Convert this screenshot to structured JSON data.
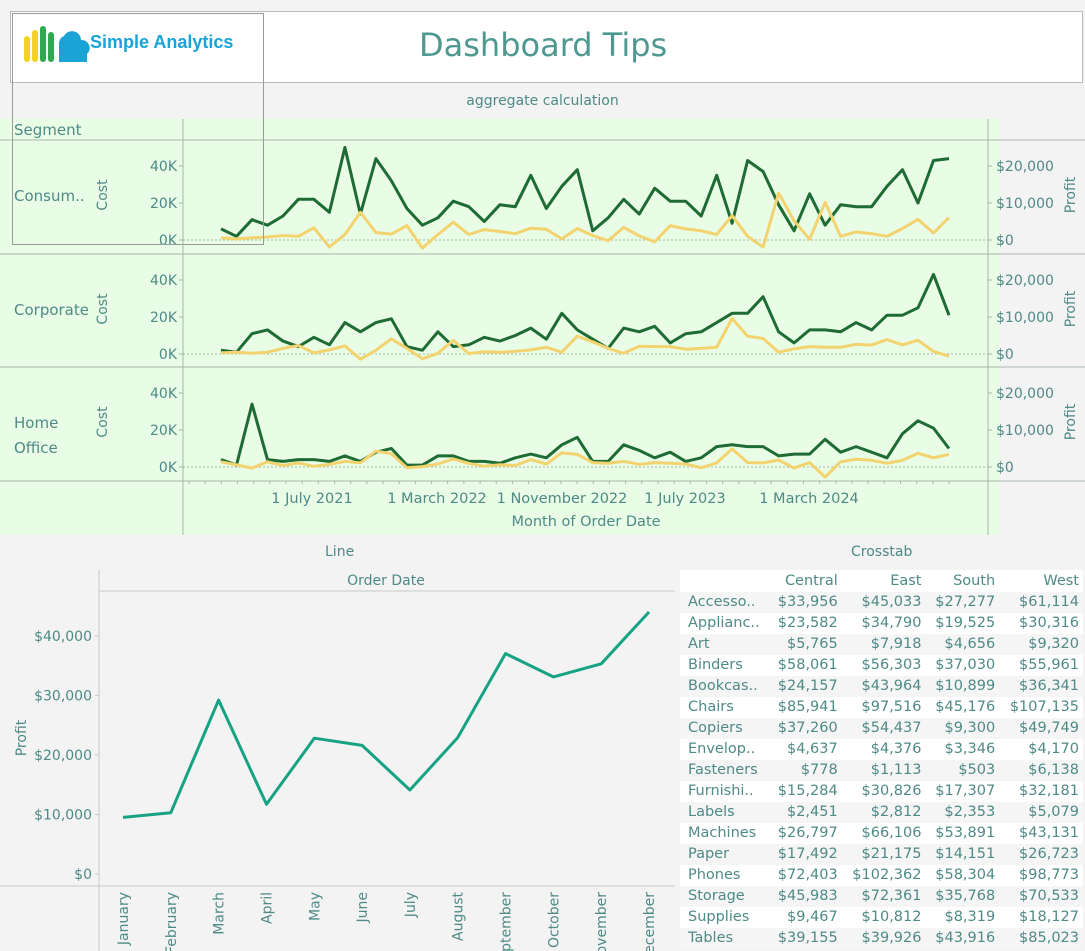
{
  "header": {
    "logo_text": "Simple Analytics",
    "title": "Dashboard Tips"
  },
  "top_chart": {
    "section_label": "aggregate calculation",
    "segment_header": "Segment",
    "rows": [
      {
        "segment": "Consum..",
        "cost_label": "Cost",
        "profit_label": "Profit"
      },
      {
        "segment": "Corporate",
        "cost_label": "Cost",
        "profit_label": "Profit"
      },
      {
        "segment_line1": "Home",
        "segment_line2": "Office",
        "cost_label": "Cost",
        "profit_label": "Profit"
      }
    ],
    "x_axis_title": "Month of Order Date"
  },
  "line_section": {
    "label": "Line",
    "column_header": "Order Date"
  },
  "crosstab": {
    "label": "Crosstab",
    "columns": [
      "Central",
      "East",
      "South",
      "West"
    ],
    "rows": [
      {
        "category": "Accesso..",
        "values": [
          "$33,956",
          "$45,033",
          "$27,277",
          "$61,114"
        ]
      },
      {
        "category": "Applianc..",
        "values": [
          "$23,582",
          "$34,790",
          "$19,525",
          "$30,316"
        ]
      },
      {
        "category": "Art",
        "values": [
          "$5,765",
          "$7,918",
          "$4,656",
          "$9,320"
        ]
      },
      {
        "category": "Binders",
        "values": [
          "$58,061",
          "$56,303",
          "$37,030",
          "$55,961"
        ]
      },
      {
        "category": "Bookcas..",
        "values": [
          "$24,157",
          "$43,964",
          "$10,899",
          "$36,341"
        ]
      },
      {
        "category": "Chairs",
        "values": [
          "$85,941",
          "$97,516",
          "$45,176",
          "$107,135"
        ]
      },
      {
        "category": "Copiers",
        "values": [
          "$37,260",
          "$54,437",
          "$9,300",
          "$49,749"
        ]
      },
      {
        "category": "Envelop..",
        "values": [
          "$4,637",
          "$4,376",
          "$3,346",
          "$4,170"
        ]
      },
      {
        "category": "Fasteners",
        "values": [
          "$778",
          "$1,113",
          "$503",
          "$6,138"
        ]
      },
      {
        "category": "Furnishi..",
        "values": [
          "$15,284",
          "$30,826",
          "$17,307",
          "$32,181"
        ]
      },
      {
        "category": "Labels",
        "values": [
          "$2,451",
          "$2,812",
          "$2,353",
          "$5,079"
        ]
      },
      {
        "category": "Machines",
        "values": [
          "$26,797",
          "$66,106",
          "$53,891",
          "$43,131"
        ]
      },
      {
        "category": "Paper",
        "values": [
          "$17,492",
          "$21,175",
          "$14,151",
          "$26,723"
        ]
      },
      {
        "category": "Phones",
        "values": [
          "$72,403",
          "$102,362",
          "$58,304",
          "$98,773"
        ]
      },
      {
        "category": "Storage",
        "values": [
          "$45,983",
          "$72,361",
          "$35,768",
          "$70,533"
        ]
      },
      {
        "category": "Supplies",
        "values": [
          "$9,467",
          "$10,812",
          "$8,319",
          "$18,127"
        ]
      },
      {
        "category": "Tables",
        "values": [
          "$39,155",
          "$39,926",
          "$43,916",
          "$85,023"
        ]
      }
    ]
  },
  "colors": {
    "cost_line": "#1e6b34",
    "profit_line": "#f3d36f",
    "profit_month_line": "#17a383",
    "panel_bg": "#e9fde6",
    "text": "#4e8a86"
  },
  "chart_data": [
    {
      "type": "line",
      "title": "aggregate calculation",
      "xlabel": "Month of Order Date",
      "x_tick_labels": [
        "1 July 2021",
        "1 March 2022",
        "1 November 2022",
        "1 July 2023",
        "1 March 2024"
      ],
      "left_axis": {
        "label": "Cost",
        "ticks": [
          "0K",
          "20K",
          "40K"
        ],
        "range": [
          0,
          50000
        ]
      },
      "right_axis": {
        "label": "Profit",
        "ticks": [
          "$0",
          "$10,000",
          "$20,000"
        ],
        "range": [
          0,
          25000
        ]
      },
      "panels": [
        {
          "segment": "Consumer",
          "series": [
            {
              "name": "Cost",
              "axis": "left",
              "values": [
                6000,
                2000,
                11000,
                8000,
                13000,
                22000,
                22000,
                15000,
                50000,
                14000,
                44000,
                32000,
                17000,
                8000,
                12000,
                21000,
                18000,
                10000,
                19000,
                18000,
                35000,
                17000,
                29000,
                38000,
                5000,
                12000,
                22000,
                14000,
                28000,
                21000,
                21000,
                13000,
                35000,
                9000,
                43000,
                37000,
                19000,
                5000,
                25000,
                8000,
                19000,
                18000,
                18000,
                29000,
                38000,
                20000,
                43000,
                44000
              ]
            },
            {
              "name": "Profit",
              "axis": "right",
              "values": [
                600,
                300,
                600,
                800,
                1200,
                1000,
                3300,
                -1900,
                1500,
                7500,
                2000,
                1600,
                3900,
                -2200,
                1500,
                4800,
                1500,
                2800,
                2300,
                1700,
                3200,
                2900,
                300,
                3100,
                1200,
                -200,
                3400,
                1100,
                -500,
                3900,
                3000,
                2500,
                1500,
                6600,
                1000,
                -1900,
                12700,
                5200,
                200,
                10200,
                1000,
                2200,
                1700,
                1000,
                3100,
                5600,
                1900,
                6100
              ]
            }
          ]
        },
        {
          "segment": "Corporate",
          "series": [
            {
              "name": "Cost",
              "axis": "left",
              "values": [
                2000,
                1000,
                11000,
                13000,
                7000,
                4000,
                9000,
                5000,
                17000,
                12000,
                17000,
                19000,
                4000,
                2000,
                12000,
                4000,
                5000,
                9000,
                7000,
                10000,
                14000,
                8000,
                22000,
                13000,
                8000,
                3000,
                14000,
                12000,
                15000,
                6000,
                11000,
                12000,
                17000,
                22000,
                22000,
                31000,
                12000,
                6000,
                13000,
                13000,
                12000,
                17000,
                13000,
                21000,
                21000,
                25000,
                43000,
                21000
              ]
            },
            {
              "name": "Profit",
              "axis": "right",
              "values": [
                300,
                500,
                200,
                500,
                1500,
                2300,
                300,
                1100,
                2200,
                -1400,
                1000,
                4100,
                1500,
                -1300,
                200,
                3700,
                100,
                600,
                500,
                700,
                1100,
                1800,
                500,
                4800,
                3300,
                1500,
                200,
                2100,
                2000,
                2000,
                1300,
                1500,
                1800,
                9600,
                4800,
                4200,
                500,
                1400,
                2000,
                1800,
                1800,
                2600,
                2400,
                3900,
                2500,
                3700,
                700,
                -600
              ]
            }
          ]
        },
        {
          "segment": "Home Office",
          "series": [
            {
              "name": "Cost",
              "axis": "left",
              "values": [
                4000,
                1000,
                34000,
                4000,
                3000,
                4000,
                4000,
                3000,
                6000,
                3000,
                8000,
                10000,
                1000,
                1000,
                6000,
                6000,
                3000,
                3000,
                2000,
                5000,
                7000,
                5000,
                12000,
                16000,
                3000,
                3000,
                12000,
                9000,
                5000,
                8000,
                3000,
                5000,
                11000,
                12000,
                11000,
                11000,
                6000,
                7000,
                7000,
                15000,
                8000,
                11000,
                8000,
                5000,
                18000,
                25000,
                21000,
                10000
              ]
            },
            {
              "name": "Profit",
              "axis": "right",
              "values": [
                1400,
                600,
                -300,
                1400,
                400,
                1100,
                200,
                700,
                1500,
                1100,
                4300,
                3600,
                -200,
                100,
                800,
                2200,
                1000,
                200,
                600,
                400,
                2000,
                800,
                3800,
                3400,
                1200,
                1000,
                1500,
                700,
                1200,
                1000,
                800,
                -200,
                1100,
                4900,
                1200,
                1100,
                1900,
                -300,
                1200,
                -2700,
                1400,
                2100,
                1800,
                1000,
                1800,
                3700,
                2500,
                3400
              ]
            }
          ]
        }
      ]
    },
    {
      "type": "line",
      "title": "Line",
      "xlabel": "Order Date",
      "ylabel": "Profit",
      "ylim": [
        0,
        45000
      ],
      "y_tick_labels": [
        "$0",
        "$10,000",
        "$20,000",
        "$30,000",
        "$40,000"
      ],
      "categories": [
        "January",
        "February",
        "March",
        "April",
        "May",
        "June",
        "July",
        "August",
        "September",
        "October",
        "November",
        "December"
      ],
      "values": [
        9500,
        10300,
        29200,
        11700,
        22800,
        21600,
        14100,
        22900,
        37000,
        33100,
        35300,
        44000
      ]
    }
  ]
}
